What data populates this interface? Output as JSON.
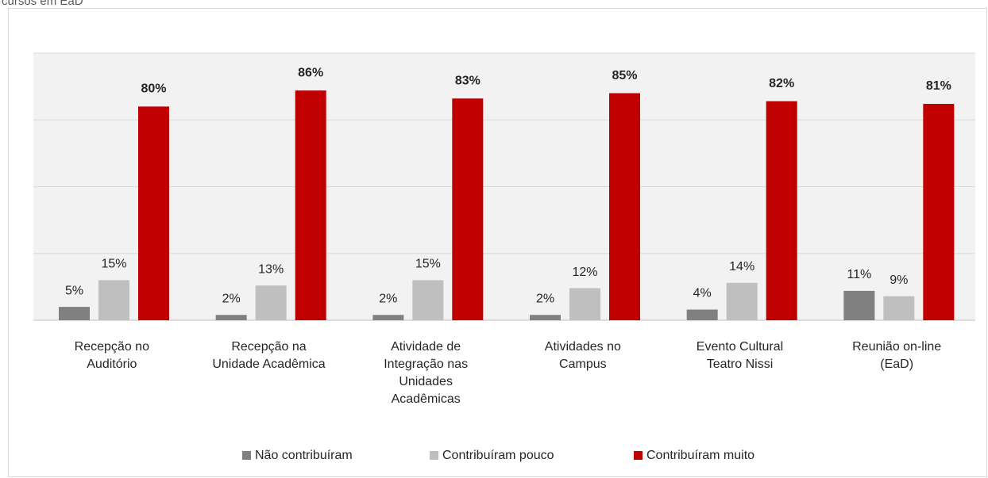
{
  "chart_data": {
    "type": "bar",
    "title": "cursos em EaD",
    "categories": [
      "Recepção no Auditório",
      "Recepção na Unidade Acadêmica",
      "Atividade de Integração nas Unidades Acadêmicas",
      "Atividades no Campus",
      "Evento Cultural Teatro Nissi",
      "Reunião on-line (EaD)"
    ],
    "series": [
      {
        "name": "Não contribuíram",
        "color": "#808080",
        "values": [
          5,
          2,
          2,
          2,
          4,
          11
        ],
        "value_labels": [
          "5%",
          "2%",
          "2%",
          "2%",
          "4%",
          "11%"
        ]
      },
      {
        "name": "Contribuíram pouco",
        "color": "#bfbfbf",
        "values": [
          15,
          13,
          15,
          12,
          14,
          9
        ],
        "value_labels": [
          "15%",
          "13%",
          "15%",
          "12%",
          "14%",
          "9%"
        ]
      },
      {
        "name": "Contribuíram muito",
        "color": "#c00000",
        "values": [
          80,
          86,
          83,
          85,
          82,
          81
        ],
        "value_labels": [
          "80%",
          "86%",
          "83%",
          "85%",
          "82%",
          "81%"
        ]
      }
    ],
    "ylim": [
      0,
      100
    ],
    "yticks": [
      0,
      25,
      50,
      75,
      100
    ],
    "grid": true,
    "legend": "bottom"
  }
}
